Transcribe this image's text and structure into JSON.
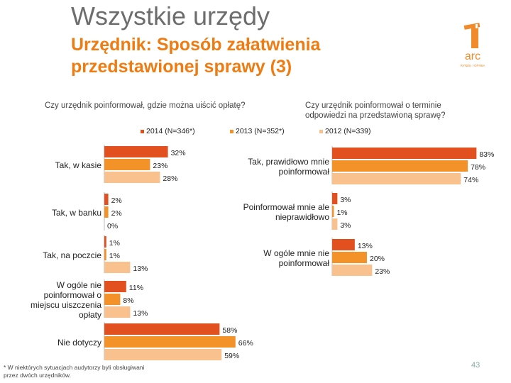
{
  "header": {
    "title": "Wszystkie urzędy",
    "subtitle": "Urzędnik: Sposób załatwienia przedstawionej sprawy (3)"
  },
  "logo": {
    "icon": "arc-logo-icon",
    "text": "arc",
    "tagline": "RYNEK I OPINIA"
  },
  "colors": {
    "y2014": "#e2501f",
    "y2013": "#f4922a",
    "y2012": "#f9c18e"
  },
  "chart_data": [
    {
      "type": "bar",
      "orientation": "horizontal",
      "title": "Czy urzędnik poinformował, gdzie można uiścić opłatę?",
      "categories": [
        "Tak, w kasie",
        "Tak, w banku",
        "Tak, na poczcie",
        "W ogóle nie poinformował o miejscu uiszczenia opłaty",
        "Nie dotyczy"
      ],
      "series": [
        {
          "name": "2014 (N=346*)",
          "values": [
            32,
            2,
            1,
            11,
            58
          ]
        },
        {
          "name": "2013 (N=352*)",
          "values": [
            23,
            2,
            1,
            8,
            66
          ]
        },
        {
          "name": "2012 (N=339)",
          "values": [
            28,
            0,
            13,
            13,
            59
          ]
        }
      ],
      "value_labels": [
        [
          "32%",
          "2%",
          "1%",
          "11%",
          "58%"
        ],
        [
          "23%",
          "2%",
          "1%",
          "8%",
          "66%"
        ],
        [
          "28%",
          "0%",
          "13%",
          "13%",
          "59%"
        ]
      ],
      "xlim": [
        0,
        100
      ]
    },
    {
      "type": "bar",
      "orientation": "horizontal",
      "title": "Czy urzędnik poinformował o terminie odpowiedzi na przedstawioną sprawę?",
      "categories": [
        "Tak, prawidłowo mnie poinformował",
        "Poinformował mnie ale nieprawidłowo",
        "W ogóle mnie nie poinformował"
      ],
      "series": [
        {
          "name": "2014 (N=346*)",
          "values": [
            83,
            3,
            13
          ]
        },
        {
          "name": "2013 (N=352*)",
          "values": [
            78,
            1,
            20
          ]
        },
        {
          "name": "2012 (N=339)",
          "values": [
            74,
            3,
            23
          ]
        }
      ],
      "value_labels": [
        [
          "83%",
          "3%",
          "13%"
        ],
        [
          "78%",
          "1%",
          "20%"
        ],
        [
          "74%",
          "3%",
          "23%"
        ]
      ],
      "xlim": [
        0,
        100
      ]
    }
  ],
  "legend": [
    "2014 (N=346*)",
    "2013 (N=352*)",
    "2012 (N=339)"
  ],
  "footnote": "* W niektórych sytuacjach audytorzy byli obsługiwani przez dwóch urzędników.",
  "page_number": "43"
}
